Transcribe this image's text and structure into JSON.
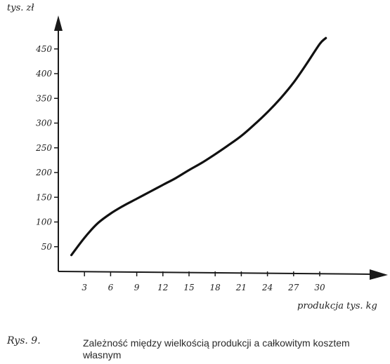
{
  "chart_data": {
    "type": "line",
    "ylabel": "tys. zł",
    "xlabel": "produkcja tys. kg",
    "xticks": [
      3,
      6,
      9,
      12,
      15,
      18,
      21,
      24,
      27,
      30
    ],
    "yticks": [
      50,
      100,
      150,
      200,
      250,
      300,
      350,
      400,
      450
    ],
    "xlim": [
      0,
      34
    ],
    "ylim": [
      0,
      500
    ],
    "grid": false,
    "series": [
      {
        "x": [
          1.5,
          3,
          4.5,
          6,
          7.5,
          9,
          10.5,
          12,
          13.5,
          15,
          16.5,
          18,
          19.5,
          21,
          22.5,
          24,
          25.5,
          27,
          28.5,
          30,
          30.7
        ],
        "values": [
          33,
          68,
          97,
          117,
          133,
          147,
          161,
          175,
          189,
          205,
          220,
          237,
          255,
          274,
          297,
          322,
          350,
          382,
          420,
          460,
          472
        ]
      }
    ]
  },
  "caption": {
    "label": "Rys. 9.",
    "text": "Zależność między wielkością produkcji a całkowitym kosztem własnym"
  }
}
